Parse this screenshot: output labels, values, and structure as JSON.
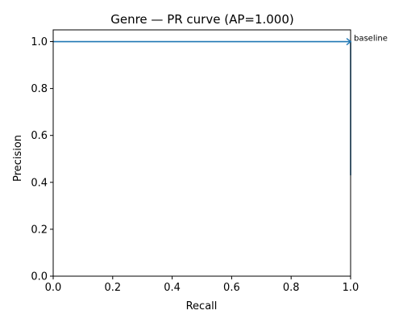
{
  "chart_data": {
    "type": "line",
    "title": "Genre — PR curve (AP=1.000)",
    "xlabel": "Recall",
    "ylabel": "Precision",
    "xlim": [
      0.0,
      1.0
    ],
    "ylim": [
      0.0,
      1.05
    ],
    "xticks": [
      "0.0",
      "0.2",
      "0.4",
      "0.6",
      "0.8",
      "1.0"
    ],
    "yticks": [
      "0.0",
      "0.2",
      "0.4",
      "0.6",
      "0.8",
      "1.0"
    ],
    "grid": false,
    "series": [
      {
        "x": [
          0.0,
          1.0,
          1.0
        ],
        "y": [
          1.0,
          1.0,
          0.43
        ],
        "color": "#1f77b4"
      }
    ],
    "annotation": {
      "text": "baseline",
      "x": 1.0,
      "y": 1.0
    }
  }
}
